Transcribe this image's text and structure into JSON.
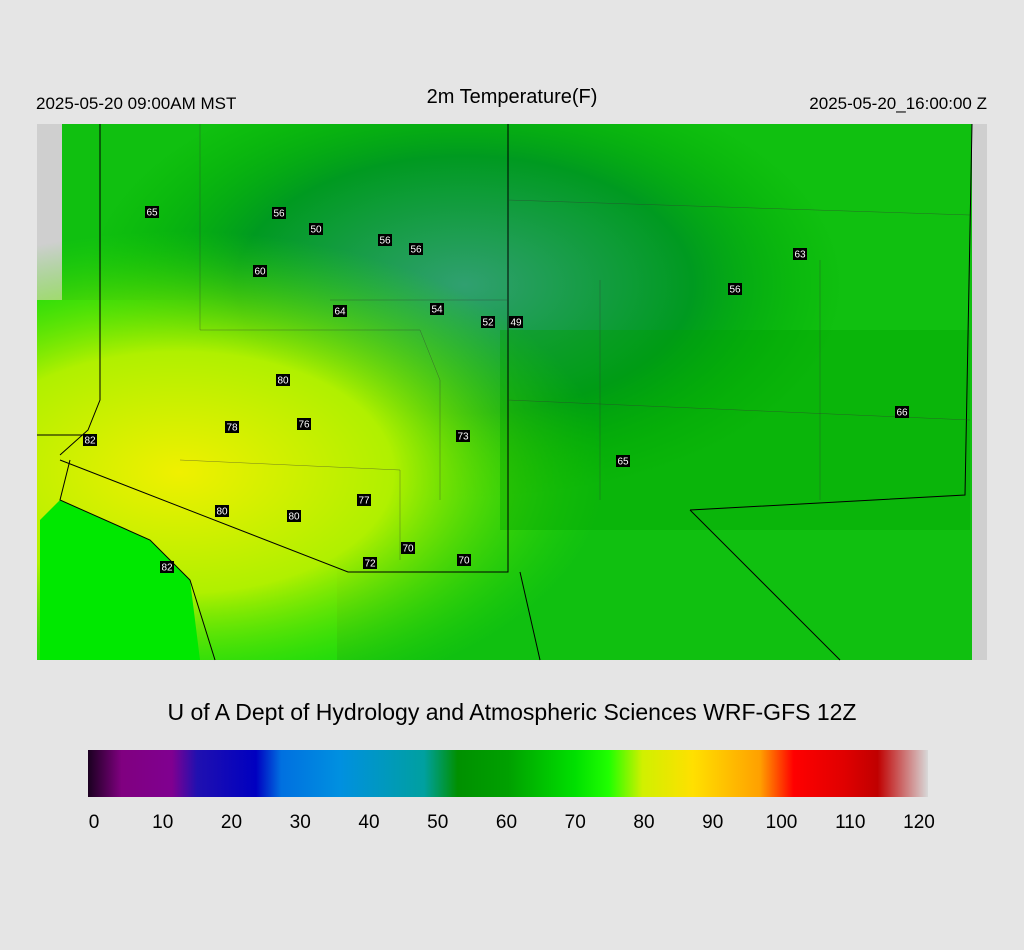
{
  "header": {
    "left": "2025-05-20 09:00AM MST",
    "title": "2m Temperature(F)",
    "right": "2025-05-20_16:00:00 Z"
  },
  "stations": [
    65,
    56,
    50,
    56,
    56,
    60,
    64,
    54,
    52,
    49,
    63,
    56,
    80,
    78,
    76,
    82,
    73,
    65,
    66,
    77,
    80,
    80,
    70,
    72,
    70,
    82
  ],
  "credit": "U of A Dept of Hydrology and Atmospheric Sciences WRF-GFS 12Z",
  "colorbar": {
    "ticks": [
      0,
      10,
      20,
      30,
      40,
      50,
      60,
      70,
      80,
      90,
      100,
      110,
      120
    ]
  }
}
